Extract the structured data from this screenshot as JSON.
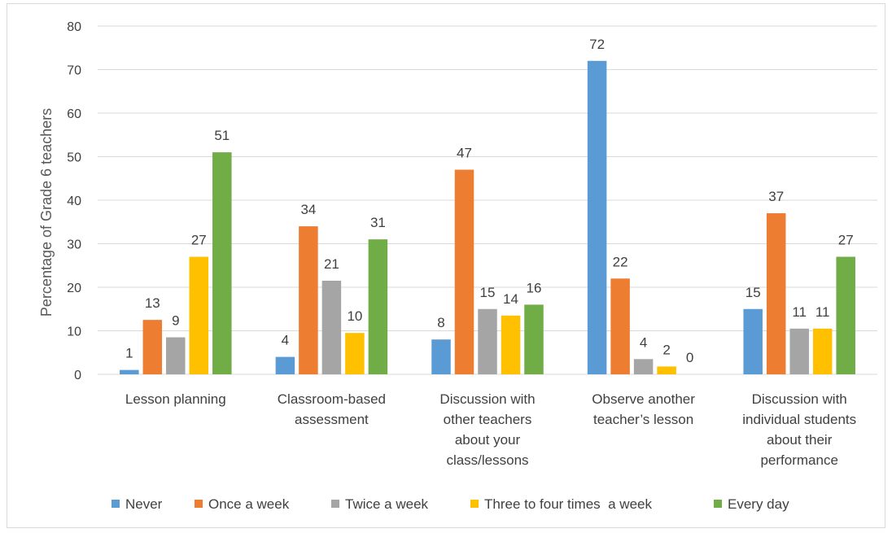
{
  "chart_data": {
    "type": "bar",
    "title": "",
    "xlabel": "",
    "ylabel": "Percentage of Grade 6 teachers",
    "ylim": [
      0,
      80
    ],
    "yticks": [
      0,
      10,
      20,
      30,
      40,
      50,
      60,
      70,
      80
    ],
    "grid": true,
    "legend_position": "bottom",
    "categories": [
      "Lesson planning",
      "Classroom-based assessment",
      "Discussion with other teachers about your class/lessons",
      "Observe another teacher’s lesson",
      "Discussion with individual students about their performance"
    ],
    "category_lines": [
      [
        "Lesson planning"
      ],
      [
        "Classroom-based",
        "assessment"
      ],
      [
        "Discussion with",
        "other teachers",
        "about your",
        "class/lessons"
      ],
      [
        "Observe another",
        "teacher’s lesson"
      ],
      [
        "Discussion with",
        "individual students",
        "about their",
        "performance"
      ]
    ],
    "series": [
      {
        "name": "Never",
        "color": "#5b9bd5",
        "values": [
          1,
          4,
          8,
          72,
          15
        ],
        "value_labels": [
          "1",
          "4",
          "8",
          "72",
          "15"
        ]
      },
      {
        "name": "Once a week",
        "color": "#ed7d31",
        "values": [
          12.5,
          34,
          47,
          22,
          37
        ],
        "value_labels": [
          "13",
          "34",
          "47",
          "22",
          "37"
        ]
      },
      {
        "name": "Twice a week",
        "color": "#a5a5a5",
        "values": [
          8.5,
          21.5,
          15,
          3.5,
          10.5
        ],
        "value_labels": [
          "9",
          "21",
          "15",
          "4",
          "11"
        ]
      },
      {
        "name": "Three to four times  a week",
        "color": "#ffc000",
        "values": [
          27,
          9.5,
          13.5,
          1.8,
          10.5
        ],
        "value_labels": [
          "27",
          "10",
          "14",
          "2",
          "11"
        ]
      },
      {
        "name": "Every day",
        "color": "#70ad47",
        "values": [
          51,
          31,
          16,
          0,
          27
        ],
        "value_labels": [
          "51",
          "31",
          "16",
          "0",
          "27"
        ]
      }
    ]
  }
}
